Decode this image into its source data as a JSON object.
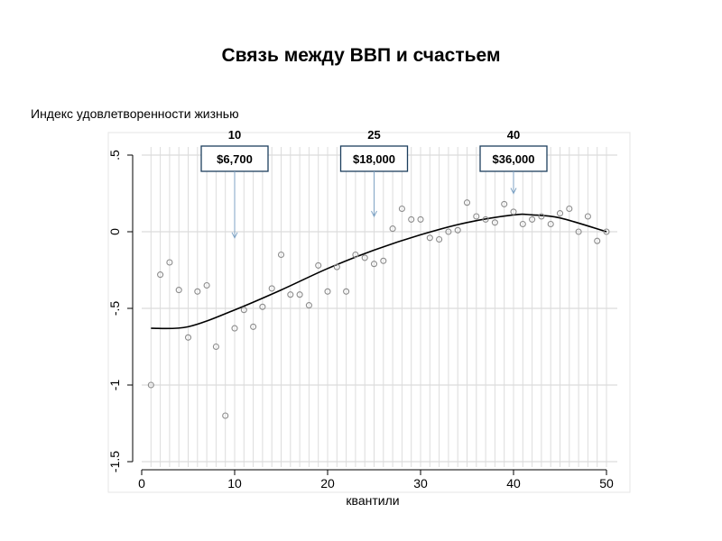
{
  "chart_data": {
    "type": "scatter",
    "title": "Связь между ВВП и счастьем",
    "ylabel": "Индекс удовлетворенности жизнью",
    "xlabel": "квантили",
    "xlim": [
      0,
      50
    ],
    "ylim": [
      -1.5,
      0.5
    ],
    "x_ticks": [
      {
        "value": 0,
        "label": "0"
      },
      {
        "value": 10,
        "label": "10"
      },
      {
        "value": 20,
        "label": "20"
      },
      {
        "value": 30,
        "label": "30"
      },
      {
        "value": 40,
        "label": "40"
      },
      {
        "value": 50,
        "label": "50"
      }
    ],
    "y_ticks": [
      {
        "value": 0.5,
        "label": ".5"
      },
      {
        "value": 0,
        "label": "0"
      },
      {
        "value": -0.5,
        "label": "-.5"
      },
      {
        "value": -1,
        "label": "-1"
      },
      {
        "value": -1.5,
        "label": "-1.5"
      }
    ],
    "grid": true,
    "points": [
      {
        "x": 1,
        "y": -1.0
      },
      {
        "x": 2,
        "y": -0.28
      },
      {
        "x": 3,
        "y": -0.2
      },
      {
        "x": 4,
        "y": -0.38
      },
      {
        "x": 5,
        "y": -0.69
      },
      {
        "x": 6,
        "y": -0.39
      },
      {
        "x": 7,
        "y": -0.35
      },
      {
        "x": 8,
        "y": -0.75
      },
      {
        "x": 9,
        "y": -1.2
      },
      {
        "x": 10,
        "y": -0.63
      },
      {
        "x": 11,
        "y": -0.51
      },
      {
        "x": 12,
        "y": -0.62
      },
      {
        "x": 13,
        "y": -0.49
      },
      {
        "x": 14,
        "y": -0.37
      },
      {
        "x": 15,
        "y": -0.15
      },
      {
        "x": 16,
        "y": -0.41
      },
      {
        "x": 17,
        "y": -0.41
      },
      {
        "x": 18,
        "y": -0.48
      },
      {
        "x": 19,
        "y": -0.22
      },
      {
        "x": 20,
        "y": -0.39
      },
      {
        "x": 21,
        "y": -0.23
      },
      {
        "x": 22,
        "y": -0.39
      },
      {
        "x": 23,
        "y": -0.15
      },
      {
        "x": 24,
        "y": -0.17
      },
      {
        "x": 25,
        "y": -0.21
      },
      {
        "x": 26,
        "y": -0.19
      },
      {
        "x": 27,
        "y": 0.02
      },
      {
        "x": 28,
        "y": 0.15
      },
      {
        "x": 29,
        "y": 0.08
      },
      {
        "x": 30,
        "y": 0.08
      },
      {
        "x": 31,
        "y": -0.04
      },
      {
        "x": 32,
        "y": -0.05
      },
      {
        "x": 33,
        "y": 0.0
      },
      {
        "x": 34,
        "y": 0.01
      },
      {
        "x": 35,
        "y": 0.19
      },
      {
        "x": 36,
        "y": 0.1
      },
      {
        "x": 37,
        "y": 0.08
      },
      {
        "x": 38,
        "y": 0.06
      },
      {
        "x": 39,
        "y": 0.18
      },
      {
        "x": 40,
        "y": 0.13
      },
      {
        "x": 41,
        "y": 0.05
      },
      {
        "x": 42,
        "y": 0.08
      },
      {
        "x": 43,
        "y": 0.1
      },
      {
        "x": 44,
        "y": 0.05
      },
      {
        "x": 45,
        "y": 0.12
      },
      {
        "x": 46,
        "y": 0.15
      },
      {
        "x": 47,
        "y": 0.0
      },
      {
        "x": 48,
        "y": 0.1
      },
      {
        "x": 49,
        "y": -0.06
      },
      {
        "x": 50,
        "y": 0.0
      }
    ],
    "fit_line": [
      {
        "x": 1,
        "y": -0.63
      },
      {
        "x": 5,
        "y": -0.62
      },
      {
        "x": 10,
        "y": -0.51
      },
      {
        "x": 15,
        "y": -0.38
      },
      {
        "x": 20,
        "y": -0.24
      },
      {
        "x": 25,
        "y": -0.12
      },
      {
        "x": 30,
        "y": -0.02
      },
      {
        "x": 35,
        "y": 0.06
      },
      {
        "x": 40,
        "y": 0.11
      },
      {
        "x": 42,
        "y": 0.11
      },
      {
        "x": 45,
        "y": 0.09
      },
      {
        "x": 50,
        "y": 0.0
      }
    ],
    "annotations": [
      {
        "x": 10,
        "top_label": "10",
        "label": "$6,700",
        "arrow_to_y": -0.04
      },
      {
        "x": 25,
        "top_label": "25",
        "label": "$18,000",
        "arrow_to_y": 0.1
      },
      {
        "x": 40,
        "top_label": "40",
        "label": "$36,000",
        "arrow_to_y": 0.25
      }
    ],
    "colors": {
      "points": "#8c8c8c",
      "line": "#000000",
      "grid": "#dcdcdc",
      "box_border": "#1d3f5e",
      "arrow": "#7fa3c4"
    }
  }
}
